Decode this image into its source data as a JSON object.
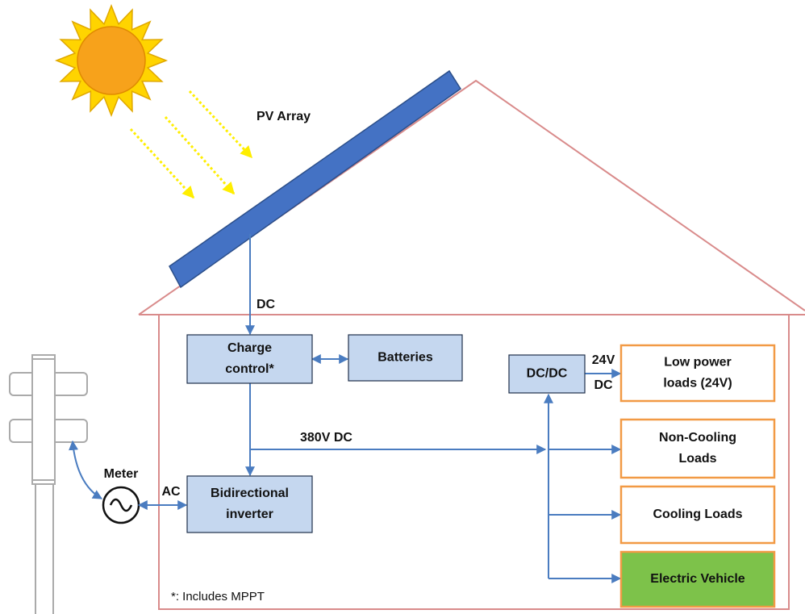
{
  "labels": {
    "pv_array": "PV Array",
    "dc": "DC",
    "bus": "380V DC",
    "ac": "AC",
    "meter": "Meter",
    "dcdc_out": [
      "24V",
      "DC"
    ],
    "footnote": "*: Includes MPPT"
  },
  "nodes": [
    {
      "lines": [
        "Charge",
        "control*"
      ]
    },
    {
      "lines": [
        "Batteries"
      ]
    },
    {
      "lines": [
        "Bidirectional",
        "inverter"
      ]
    },
    {
      "lines": [
        "DC/DC"
      ]
    },
    {
      "lines": [
        "Low power",
        "loads (24V)"
      ]
    },
    {
      "lines": [
        "Non-Cooling",
        "Loads"
      ]
    },
    {
      "lines": [
        "Cooling Loads"
      ]
    },
    {
      "lines": [
        "Electric Vehicle"
      ]
    }
  ]
}
